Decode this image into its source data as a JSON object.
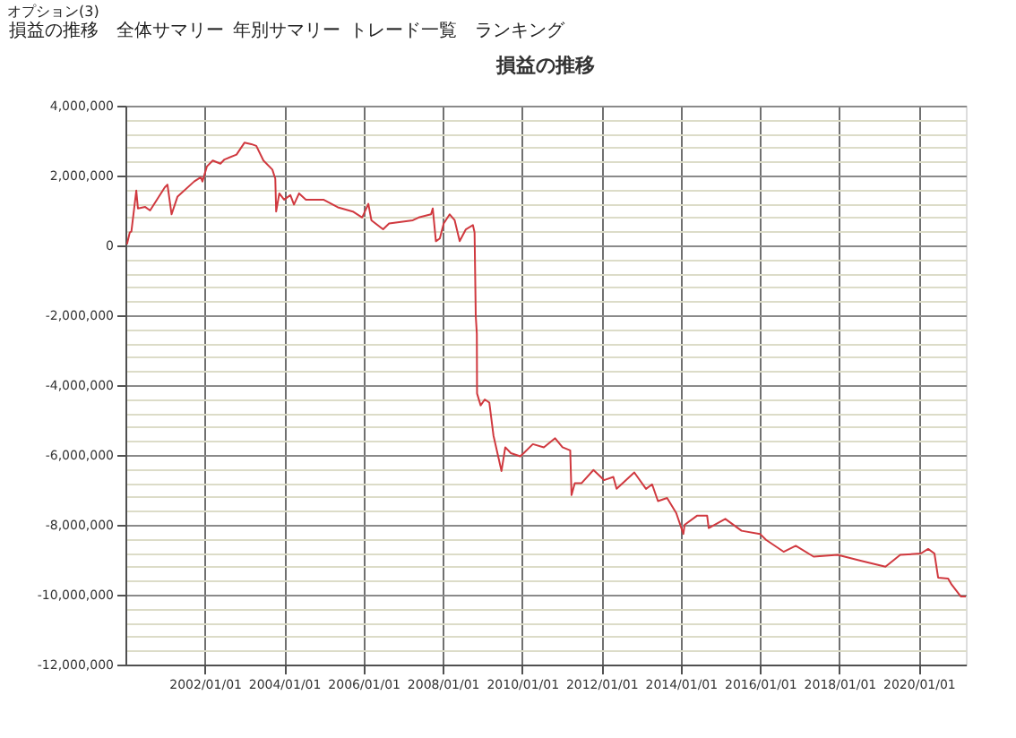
{
  "chart_data": {
    "type": "line",
    "title": "損益の推移",
    "annotations": [
      "オプション(3)",
      "損益の推移",
      "全体サマリー",
      "年別サマリー",
      "トレード一覧",
      "ランキング"
    ],
    "series": [
      {
        "color": "#d0393f",
        "x": [
          "2000-01-15",
          "2000-02-10",
          "2000-02-25",
          "2000-04-10",
          "2000-04-25",
          "2000-07-01",
          "2000-08-15",
          "2000-12-28",
          "2001-01-22",
          "2001-03-01",
          "2001-04-25",
          "2001-09-25",
          "2001-11-25",
          "2001-12-10",
          "2002-01-20",
          "2002-03-15",
          "2002-05-25",
          "2002-07-01",
          "2002-10-20",
          "2003-01-01",
          "2003-03-05",
          "2003-04-20",
          "2003-06-25",
          "2003-09-15",
          "2003-10-12",
          "2003-10-20",
          "2003-11-18",
          "2004-01-01",
          "2004-02-28",
          "2004-04-01",
          "2004-05-18",
          "2004-07-20",
          "2004-12-28",
          "2005-05-10",
          "2005-09-25",
          "2005-12-20",
          "2006-02-15",
          "2006-03-15",
          "2006-07-01",
          "2006-08-25",
          "2007-04-01",
          "2007-05-25",
          "2007-09-15",
          "2007-10-01",
          "2007-10-30",
          "2007-12-05",
          "2008-01-10",
          "2008-03-05",
          "2008-04-20",
          "2008-06-05",
          "2008-08-01",
          "2008-10-05",
          "2008-10-20",
          "2008-10-31",
          "2008-11-10",
          "2008-11-12",
          "2008-12-15",
          "2009-01-22",
          "2009-03-05",
          "2009-04-12",
          "2009-06-25",
          "2009-07-30",
          "2009-09-20",
          "2009-12-15",
          "2010-01-15",
          "2010-04-10",
          "2010-07-20",
          "2010-11-01",
          "2011-01-08",
          "2011-03-20",
          "2011-04-01",
          "2011-05-01",
          "2011-07-01",
          "2011-10-20",
          "2012-01-25",
          "2012-04-20",
          "2012-05-20",
          "2012-10-30",
          "2013-02-15",
          "2013-04-12",
          "2013-06-05",
          "2013-08-28",
          "2013-11-20",
          "2014-01-25",
          "2014-02-05",
          "2014-05-30",
          "2014-09-01",
          "2014-09-15",
          "2015-02-15",
          "2015-07-15",
          "2016-01-01",
          "2016-02-25",
          "2016-08-05",
          "2016-11-25",
          "2017-05-08",
          "2017-12-15",
          "2018-07-22",
          "2019-03-01",
          "2019-07-15",
          "2020-01-20",
          "2020-03-28",
          "2020-05-25",
          "2020-06-28",
          "2020-09-28",
          "2020-10-30",
          "2021-01-22",
          "2021-03-10"
        ],
        "values": [
          30000,
          370000,
          400000,
          1570000,
          1060000,
          1100000,
          1000000,
          1660000,
          1740000,
          890000,
          1400000,
          1830000,
          1950000,
          1830000,
          2260000,
          2430000,
          2340000,
          2460000,
          2600000,
          2940000,
          2900000,
          2850000,
          2430000,
          2170000,
          1910000,
          970000,
          1490000,
          1310000,
          1440000,
          1170000,
          1490000,
          1310000,
          1310000,
          1090000,
          970000,
          800000,
          1190000,
          720000,
          460000,
          630000,
          720000,
          800000,
          890000,
          1060000,
          120000,
          200000,
          630000,
          890000,
          720000,
          120000,
          460000,
          580000,
          370000,
          -2020000,
          -2530000,
          -4240000,
          -4580000,
          -4410000,
          -4500000,
          -5440000,
          -6460000,
          -5780000,
          -5950000,
          -6040000,
          -5950000,
          -5690000,
          -5780000,
          -5520000,
          -5780000,
          -5870000,
          -7150000,
          -6810000,
          -6810000,
          -6430000,
          -6720000,
          -6630000,
          -6970000,
          -6500000,
          -6970000,
          -6840000,
          -7320000,
          -7230000,
          -7660000,
          -8260000,
          -8000000,
          -7740000,
          -7740000,
          -8090000,
          -7830000,
          -8170000,
          -8260000,
          -8430000,
          -8770000,
          -8600000,
          -8910000,
          -8860000,
          -9030000,
          -9200000,
          -8860000,
          -8820000,
          -8690000,
          -8820000,
          -9510000,
          -9540000,
          -9710000,
          -10050000,
          -10050000
        ]
      }
    ],
    "xlim": [
      "2000-01-01",
      "2021-03-10"
    ],
    "xticks": [
      {
        "value": "2002-01-01",
        "label": "2002/01/01"
      },
      {
        "value": "2004-01-01",
        "label": "2004/01/01"
      },
      {
        "value": "2006-01-01",
        "label": "2006/01/01"
      },
      {
        "value": "2008-01-01",
        "label": "2008/01/01"
      },
      {
        "value": "2010-01-01",
        "label": "2010/01/01"
      },
      {
        "value": "2012-01-01",
        "label": "2012/01/01"
      },
      {
        "value": "2014-01-01",
        "label": "2014/01/01"
      },
      {
        "value": "2016-01-01",
        "label": "2016/01/01"
      },
      {
        "value": "2018-01-01",
        "label": "2018/01/01"
      },
      {
        "value": "2020-01-01",
        "label": "2020/01/01"
      }
    ],
    "ylim": [
      -12000000,
      4000000
    ],
    "yticks": [
      {
        "value": -12000000,
        "label": "-12,000,000"
      },
      {
        "value": -11600000,
        "label": null
      },
      {
        "value": -11200000,
        "label": null
      },
      {
        "value": -10800000,
        "label": null
      },
      {
        "value": -10400000,
        "label": null
      },
      {
        "value": -10000000,
        "label": "-10,000,000"
      },
      {
        "value": -9600000,
        "label": null
      },
      {
        "value": -9200000,
        "label": null
      },
      {
        "value": -8800000,
        "label": null
      },
      {
        "value": -8400000,
        "label": null
      },
      {
        "value": -8000000,
        "label": "-8,000,000"
      },
      {
        "value": -7600000,
        "label": null
      },
      {
        "value": -7200000,
        "label": null
      },
      {
        "value": -6800000,
        "label": null
      },
      {
        "value": -6400000,
        "label": null
      },
      {
        "value": -6000000,
        "label": "-6,000,000"
      },
      {
        "value": -5600000,
        "label": null
      },
      {
        "value": -5200000,
        "label": null
      },
      {
        "value": -4800000,
        "label": null
      },
      {
        "value": -4400000,
        "label": null
      },
      {
        "value": -4000000,
        "label": "-4,000,000"
      },
      {
        "value": -3600000,
        "label": null
      },
      {
        "value": -3200000,
        "label": null
      },
      {
        "value": -2800000,
        "label": null
      },
      {
        "value": -2400000,
        "label": null
      },
      {
        "value": -2000000,
        "label": "-2,000,000"
      },
      {
        "value": -1600000,
        "label": null
      },
      {
        "value": -1200000,
        "label": null
      },
      {
        "value": -800000,
        "label": null
      },
      {
        "value": -400000,
        "label": null
      },
      {
        "value": 0,
        "label": "0"
      },
      {
        "value": 400000,
        "label": null
      },
      {
        "value": 800000,
        "label": null
      },
      {
        "value": 1200000,
        "label": null
      },
      {
        "value": 1600000,
        "label": null
      },
      {
        "value": 2000000,
        "label": "2,000,000"
      },
      {
        "value": 2400000,
        "label": null
      },
      {
        "value": 2800000,
        "label": null
      },
      {
        "value": 3200000,
        "label": null
      },
      {
        "value": 3600000,
        "label": null
      },
      {
        "value": 4000000,
        "label": "4,000,000"
      }
    ],
    "grid": true,
    "marker": "none",
    "line_style": "solid"
  }
}
